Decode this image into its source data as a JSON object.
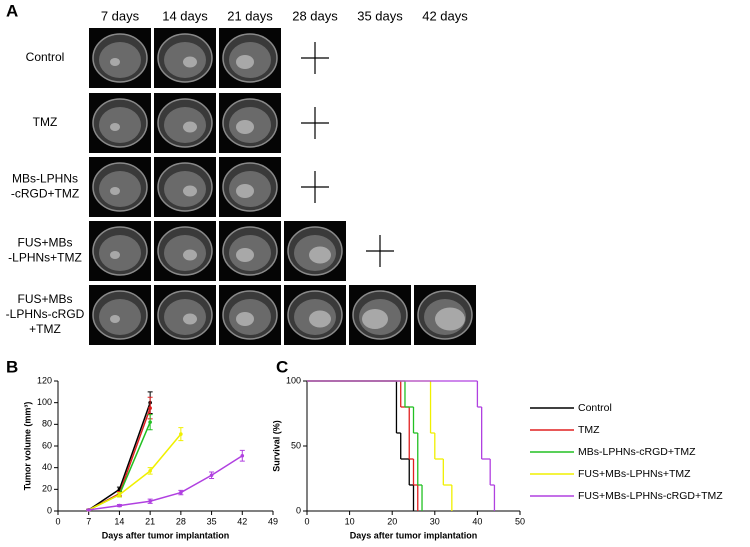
{
  "panel_labels": [
    "A",
    "B",
    "C"
  ],
  "mri": {
    "columns": [
      "7 days",
      "14 days",
      "21 days",
      "28 days",
      "35 days",
      "42 days"
    ],
    "rows": [
      [
        "Control"
      ],
      [
        "TMZ"
      ],
      [
        "MBs-LPHNs",
        "-cRGD+TMZ"
      ],
      [
        "FUS+MBs",
        "-LPHNs+TMZ"
      ],
      [
        "FUS+MBs",
        "-LPHNs-cRGD",
        "+TMZ"
      ]
    ]
  },
  "chart_data": [
    {
      "type": "line",
      "xlabel": "Days after tumor implantation",
      "ylabel": "Tumor volume (mm³)",
      "x": [
        7,
        14,
        21,
        28,
        35,
        42
      ],
      "xlim": [
        0,
        49
      ],
      "xticks": [
        0,
        7,
        14,
        21,
        28,
        35,
        42,
        49
      ],
      "ylim": [
        0,
        120
      ],
      "yticks": [
        0,
        20,
        40,
        60,
        80,
        100,
        120
      ],
      "series": [
        {
          "color": "#000000",
          "values": [
            1,
            20,
            100,
            null,
            null,
            null
          ],
          "errors": [
            0.5,
            2,
            10,
            null,
            null,
            null
          ]
        },
        {
          "color": "#e02020",
          "values": [
            1,
            16,
            95,
            null,
            null,
            null
          ],
          "errors": [
            0.5,
            2,
            10,
            null,
            null,
            null
          ]
        },
        {
          "color": "#22c022",
          "values": [
            1,
            15,
            82,
            null,
            null,
            null
          ],
          "errors": [
            0.5,
            2,
            7,
            null,
            null,
            null
          ]
        },
        {
          "color": "#f0f000",
          "values": [
            1,
            15,
            37,
            71,
            null,
            null
          ],
          "errors": [
            0.5,
            2,
            3,
            6,
            null,
            null
          ]
        },
        {
          "color": "#b040e0",
          "values": [
            1,
            5,
            9,
            17,
            33,
            51
          ],
          "errors": [
            0.5,
            1,
            2,
            2,
            3,
            5
          ]
        }
      ]
    },
    {
      "type": "step",
      "xlabel": "Days after tumor implantation",
      "ylabel": "Survival (%)",
      "xlim": [
        0,
        50
      ],
      "xticks": [
        0,
        10,
        20,
        30,
        40,
        50
      ],
      "ylim": [
        0,
        100
      ],
      "yticks": [
        0,
        50,
        100
      ],
      "series": [
        {
          "name": "Control",
          "color": "#000000",
          "x": [
            0,
            21,
            22,
            24,
            25
          ],
          "values": [
            100,
            60,
            40,
            20,
            0
          ]
        },
        {
          "name": "TMZ",
          "color": "#e02020",
          "x": [
            0,
            22,
            24,
            25,
            26
          ],
          "values": [
            100,
            80,
            40,
            20,
            0
          ]
        },
        {
          "name": "MBs-LPHNs-cRGD+TMZ",
          "color": "#22c022",
          "x": [
            0,
            23,
            25,
            26,
            27
          ],
          "values": [
            100,
            80,
            60,
            20,
            0
          ]
        },
        {
          "name": "FUS+MBs-LPHNs+TMZ",
          "color": "#f0f000",
          "x": [
            0,
            29,
            30,
            32,
            34
          ],
          "values": [
            100,
            60,
            40,
            20,
            0
          ]
        },
        {
          "name": "FUS+MBs-LPHNs-cRGD+TMZ",
          "color": "#b040e0",
          "x": [
            0,
            40,
            41,
            43,
            44
          ],
          "values": [
            100,
            80,
            40,
            20,
            0
          ]
        }
      ]
    }
  ]
}
